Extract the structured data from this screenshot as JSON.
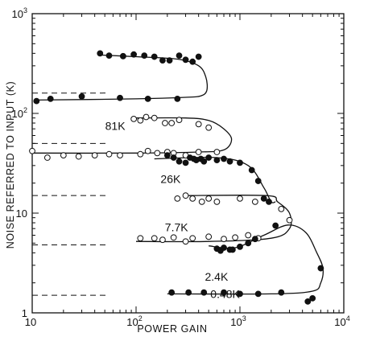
{
  "chart_data": {
    "type": "scatter",
    "xscale": "log",
    "yscale": "log",
    "xlim": [
      10,
      10000
    ],
    "ylim": [
      1,
      1000
    ],
    "xlabel": "POWER GAIN",
    "ylabel": "NOISE REFERRED TO INPUT (K)",
    "x_ticks": [
      {
        "base": "10",
        "exp": ""
      },
      {
        "base": "10",
        "exp": "2"
      },
      {
        "base": "10",
        "exp": "3"
      },
      {
        "base": "10",
        "exp": "4"
      }
    ],
    "y_ticks": [
      {
        "base": "1",
        "exp": ""
      },
      {
        "base": "10",
        "exp": ""
      },
      {
        "base": "10",
        "exp": "2"
      },
      {
        "base": "10",
        "exp": "3"
      }
    ],
    "series": [
      {
        "name": "81K",
        "label_pos": [
          63,
          75
        ],
        "marker": "filled",
        "asymptote": 160,
        "curve": [
          [
            11,
            136
          ],
          [
            100,
            140
          ],
          [
            300,
            145
          ],
          [
            420,
            150
          ],
          [
            480,
            170
          ],
          [
            470,
            230
          ],
          [
            400,
            300
          ],
          [
            250,
            350
          ],
          [
            100,
            370
          ],
          [
            45,
            385
          ]
        ],
        "points": [
          [
            11,
            133
          ],
          [
            15,
            140
          ],
          [
            30,
            148
          ],
          [
            70,
            143
          ],
          [
            130,
            140
          ],
          [
            250,
            140
          ],
          [
            45,
            400
          ],
          [
            55,
            380
          ],
          [
            75,
            375
          ],
          [
            95,
            390
          ],
          [
            120,
            380
          ],
          [
            150,
            370
          ],
          [
            180,
            340
          ],
          [
            210,
            340
          ],
          [
            260,
            380
          ],
          [
            300,
            345
          ],
          [
            350,
            330
          ],
          [
            400,
            370
          ]
        ]
      },
      {
        "name": "26K",
        "label_pos": [
          215,
          22
        ],
        "marker": "open",
        "asymptote": 50,
        "curve": [
          [
            10,
            40
          ],
          [
            100,
            40
          ],
          [
            400,
            41
          ],
          [
            700,
            43
          ],
          [
            830,
            55
          ],
          [
            700,
            70
          ],
          [
            500,
            85
          ],
          [
            300,
            90
          ],
          [
            100,
            90
          ]
        ],
        "points": [
          [
            10,
            42
          ],
          [
            14,
            36
          ],
          [
            20,
            38
          ],
          [
            28,
            37
          ],
          [
            40,
            38
          ],
          [
            55,
            39
          ],
          [
            70,
            38
          ],
          [
            110,
            39
          ],
          [
            130,
            42
          ],
          [
            160,
            40
          ],
          [
            200,
            41
          ],
          [
            230,
            40
          ],
          [
            300,
            38
          ],
          [
            400,
            41
          ],
          [
            600,
            41
          ],
          [
            95,
            88
          ],
          [
            110,
            85
          ],
          [
            125,
            92
          ],
          [
            150,
            90
          ],
          [
            190,
            80
          ],
          [
            220,
            80
          ],
          [
            260,
            86
          ],
          [
            400,
            78
          ],
          [
            500,
            72
          ]
        ]
      },
      {
        "name": "7.7K",
        "label_pos": [
          245,
          7.2
        ],
        "marker": "filled",
        "asymptote": 15,
        "curve": [
          [
            150,
            35
          ],
          [
            600,
            36
          ],
          [
            1200,
            30
          ],
          [
            1700,
            18
          ],
          [
            2000,
            13
          ],
          [
            2200,
            13
          ]
        ],
        "points": [
          [
            200,
            38
          ],
          [
            230,
            36
          ],
          [
            260,
            33
          ],
          [
            300,
            32
          ],
          [
            330,
            36
          ],
          [
            360,
            35
          ],
          [
            380,
            34
          ],
          [
            420,
            35
          ],
          [
            450,
            33
          ],
          [
            500,
            36
          ],
          [
            600,
            34
          ],
          [
            700,
            35
          ],
          [
            800,
            33
          ],
          [
            1000,
            32
          ],
          [
            1300,
            27
          ],
          [
            1500,
            21
          ],
          [
            1700,
            14
          ],
          [
            1900,
            13
          ]
        ]
      },
      {
        "name": "2.4K",
        "label_pos": [
          595,
          2.3
        ],
        "marker": "open",
        "asymptote": 4.8,
        "curve": [
          [
            300,
            15
          ],
          [
            1800,
            15
          ],
          [
            2300,
            13
          ],
          [
            3000,
            10
          ],
          [
            3000,
            7
          ],
          [
            2000,
            5.6
          ],
          [
            500,
            5.2
          ],
          [
            100,
            5.2
          ]
        ],
        "points": [
          [
            250,
            14
          ],
          [
            300,
            15
          ],
          [
            350,
            14
          ],
          [
            430,
            13
          ],
          [
            500,
            14
          ],
          [
            600,
            13
          ],
          [
            1000,
            14
          ],
          [
            1400,
            13
          ],
          [
            2500,
            11
          ],
          [
            3000,
            8.5
          ],
          [
            110,
            5.6
          ],
          [
            150,
            5.6
          ],
          [
            180,
            5.4
          ],
          [
            230,
            5.7
          ],
          [
            300,
            5.2
          ],
          [
            350,
            5.6
          ],
          [
            500,
            5.8
          ],
          [
            700,
            5.5
          ],
          [
            900,
            5.7
          ],
          [
            1200,
            6.0
          ],
          [
            1500,
            5.6
          ]
        ]
      },
      {
        "name": "0.48K",
        "label_pos": [
          720,
          1.55
        ],
        "marker": "filled",
        "asymptote": 1.5,
        "curve": [
          [
            500,
            4.7
          ],
          [
            900,
            4.5
          ],
          [
            1700,
            6.0
          ],
          [
            2900,
            7.6
          ],
          [
            4300,
            6.4
          ],
          [
            5500,
            4.0
          ],
          [
            6300,
            2.8
          ],
          [
            6000,
            2.0
          ],
          [
            5000,
            1.65
          ],
          [
            2000,
            1.55
          ],
          [
            200,
            1.55
          ]
        ],
        "points": [
          [
            600,
            4.4
          ],
          [
            650,
            4.2
          ],
          [
            700,
            4.5
          ],
          [
            800,
            4.3
          ],
          [
            850,
            4.3
          ],
          [
            1000,
            4.6
          ],
          [
            1200,
            5.0
          ],
          [
            1400,
            5.5
          ],
          [
            2200,
            7.5
          ],
          [
            6000,
            2.8
          ],
          [
            4500,
            1.3
          ],
          [
            5000,
            1.4
          ],
          [
            220,
            1.6
          ],
          [
            320,
            1.6
          ],
          [
            450,
            1.6
          ],
          [
            700,
            1.6
          ],
          [
            1000,
            1.55
          ],
          [
            1500,
            1.55
          ],
          [
            2500,
            1.6
          ]
        ]
      }
    ]
  }
}
